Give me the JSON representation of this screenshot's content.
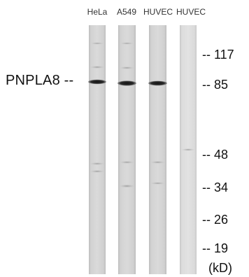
{
  "lanes": [
    {
      "label": "HeLa"
    },
    {
      "label": "A549"
    },
    {
      "label": "HUVEC"
    },
    {
      "label": "HUVEC"
    }
  ],
  "protein": {
    "label": "PNPLA8 --"
  },
  "markers": [
    {
      "label": "-- 117"
    },
    {
      "label": "-- 85"
    },
    {
      "label": "-- 48"
    },
    {
      "label": "-- 34"
    },
    {
      "label": "-- 26"
    },
    {
      "label": "-- 19"
    }
  ],
  "unit": "(kD)"
}
